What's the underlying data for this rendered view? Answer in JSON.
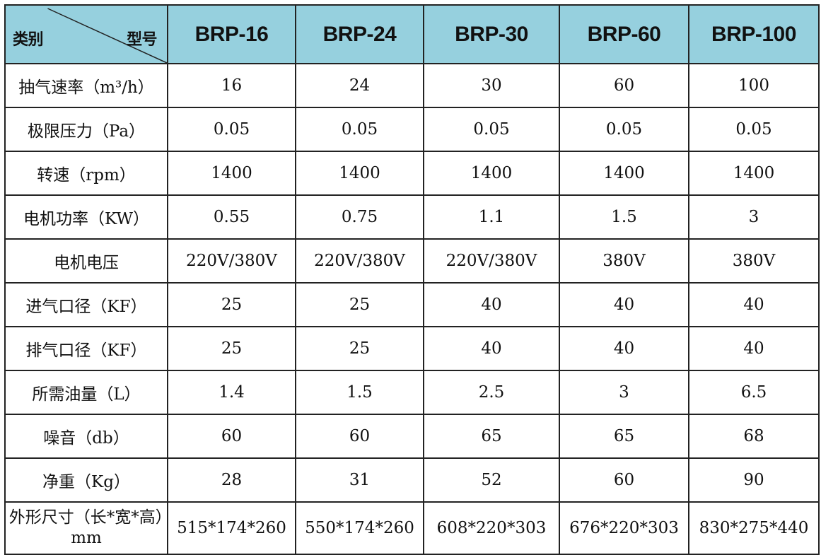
{
  "table": {
    "corner": {
      "left": "类别",
      "right": "型号"
    },
    "columns": [
      "BRP-16",
      "BRP-24",
      "BRP-30",
      "BRP-60",
      "BRP-100"
    ],
    "rows": [
      {
        "label": "抽气速率（m³/h）",
        "values": [
          "16",
          "24",
          "30",
          "60",
          "100"
        ]
      },
      {
        "label": "极限压力（Pa）",
        "values": [
          "0.05",
          "0.05",
          "0.05",
          "0.05",
          "0.05"
        ]
      },
      {
        "label": "转速（rpm）",
        "values": [
          "1400",
          "1400",
          "1400",
          "1400",
          "1400"
        ]
      },
      {
        "label": "电机功率（KW）",
        "values": [
          "0.55",
          "0.75",
          "1.1",
          "1.5",
          "3"
        ]
      },
      {
        "label": "电机电压",
        "values": [
          "220V/380V",
          "220V/380V",
          "220V/380V",
          "380V",
          "380V"
        ]
      },
      {
        "label": "进气口径（KF）",
        "values": [
          "25",
          "25",
          "40",
          "40",
          "40"
        ]
      },
      {
        "label": "排气口径（KF）",
        "values": [
          "25",
          "25",
          "40",
          "40",
          "40"
        ]
      },
      {
        "label": "所需油量（L）",
        "values": [
          "1.4",
          "1.5",
          "2.5",
          "3",
          "6.5"
        ]
      },
      {
        "label": "噪音（db）",
        "values": [
          "60",
          "60",
          "65",
          "65",
          "68"
        ]
      },
      {
        "label": "净重（Kg）",
        "values": [
          "28",
          "31",
          "52",
          "60",
          "90"
        ]
      },
      {
        "label": "外形尺寸（长*宽*高）mm",
        "values": [
          "515*174*260",
          "550*174*260",
          "608*220*303",
          "676*220*303",
          "830*275*440"
        ]
      }
    ]
  }
}
